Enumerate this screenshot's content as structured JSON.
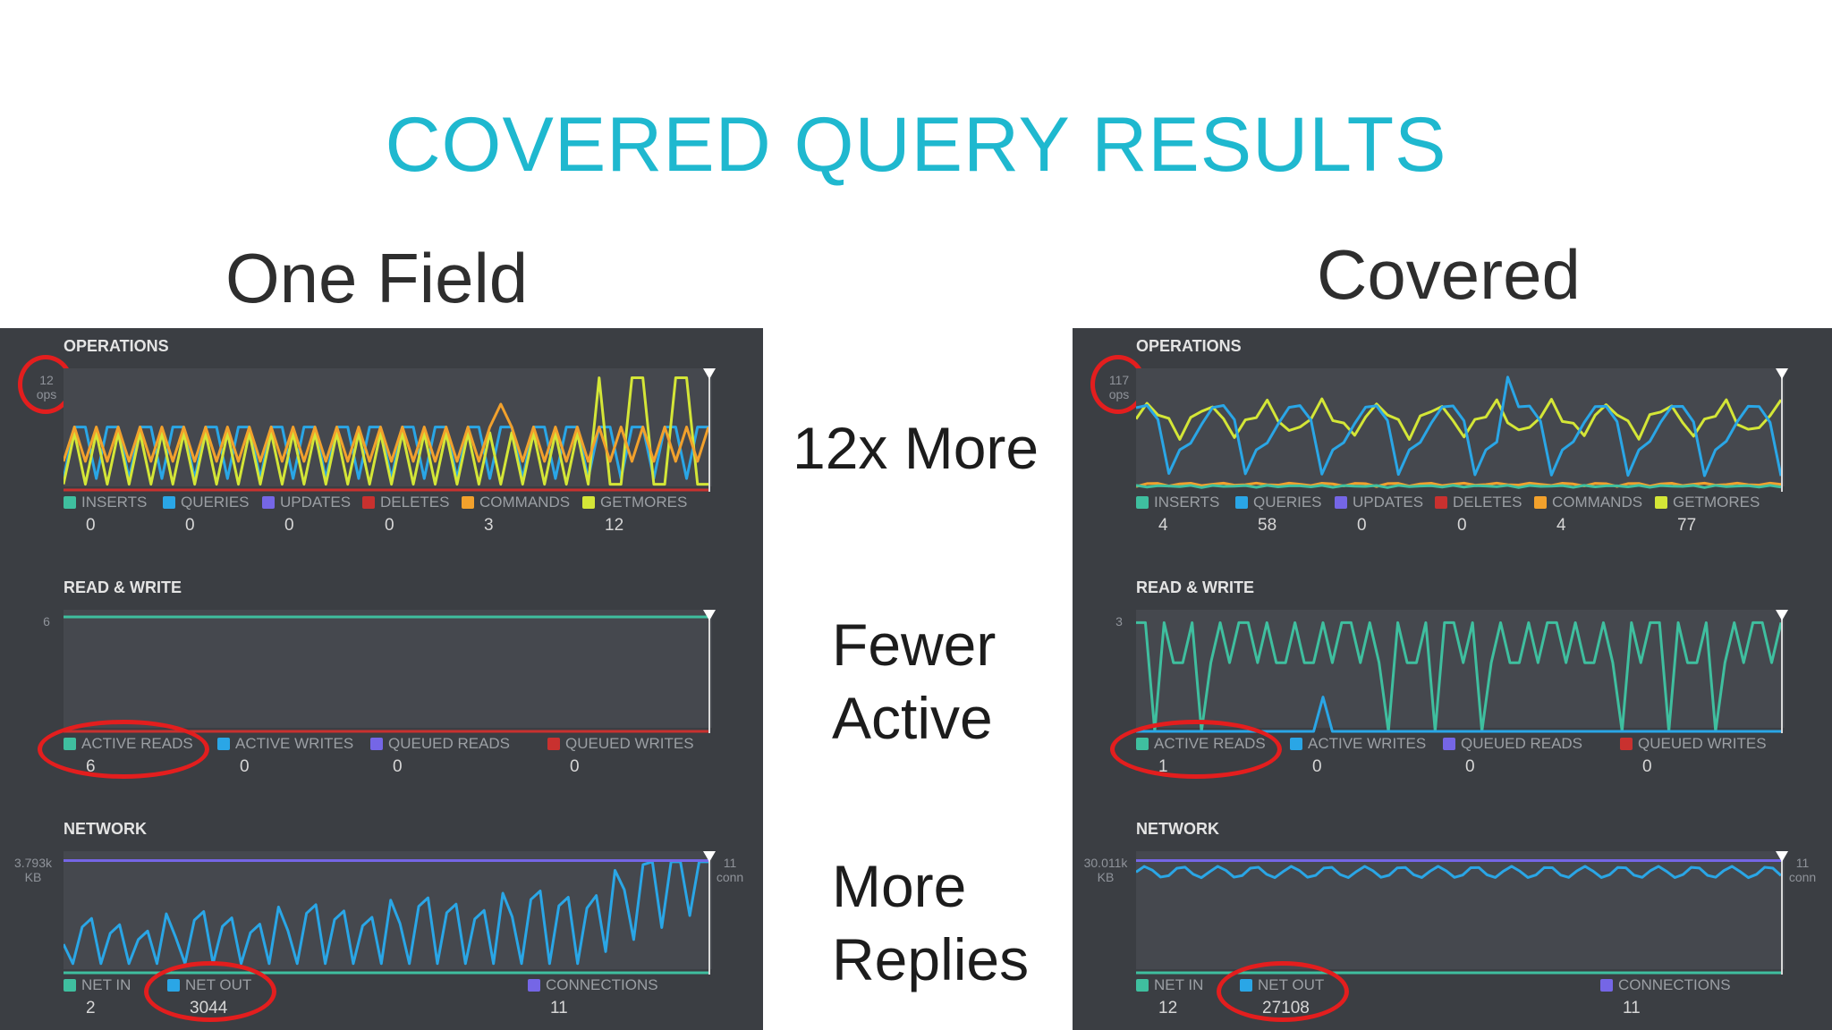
{
  "slide": {
    "title": "COVERED QUERY RESULTS",
    "left_title": "One Field",
    "right_title": "Covered",
    "notes": [
      {
        "lines": [
          "12x More"
        ]
      },
      {
        "lines": [
          "Fewer",
          "Active"
        ]
      },
      {
        "lines": [
          "More",
          "Replies"
        ]
      }
    ]
  },
  "colors": {
    "inserts": "#3fbf9f",
    "queries": "#2aa6e6",
    "updates": "#7566e6",
    "deletes": "#c9312f",
    "commands": "#f2a12c",
    "getmores": "#d4e637",
    "active_reads": "#3fbf9f",
    "active_writes": "#2aa6e6",
    "queued_reads": "#7566e6",
    "queued_writes": "#c9312f",
    "net_in": "#3fbf9f",
    "net_out": "#2aa6e6",
    "connections": "#7566e6"
  },
  "panels": [
    {
      "id": "one-field",
      "operations": {
        "title": "OPERATIONS",
        "scale": [
          "12",
          "ops"
        ],
        "legend": [
          {
            "key": "inserts",
            "label": "INSERTS",
            "value": "0"
          },
          {
            "key": "queries",
            "label": "QUERIES",
            "value": "0"
          },
          {
            "key": "updates",
            "label": "UPDATES",
            "value": "0"
          },
          {
            "key": "deletes",
            "label": "DELETES",
            "value": "0"
          },
          {
            "key": "commands",
            "label": "COMMANDS",
            "value": "3"
          },
          {
            "key": "getmores",
            "label": "GETMORES",
            "value": "12"
          }
        ]
      },
      "read_write": {
        "title": "READ & WRITE",
        "scale": "6",
        "legend": [
          {
            "key": "active_reads",
            "label": "ACTIVE READS",
            "value": "6"
          },
          {
            "key": "active_writes",
            "label": "ACTIVE WRITES",
            "value": "0"
          },
          {
            "key": "queued_reads",
            "label": "QUEUED READS",
            "value": "0"
          },
          {
            "key": "queued_writes",
            "label": "QUEUED WRITES",
            "value": "0"
          }
        ]
      },
      "network": {
        "title": "NETWORK",
        "scale_left": [
          "3.793k",
          "KB"
        ],
        "scale_right": [
          "11",
          "conn"
        ],
        "legend": [
          {
            "key": "net_in",
            "label": "NET IN",
            "value": "2"
          },
          {
            "key": "net_out",
            "label": "NET OUT",
            "value": "3044"
          },
          {
            "key": "connections",
            "label": "CONNECTIONS",
            "value": "11"
          }
        ]
      }
    },
    {
      "id": "covered",
      "operations": {
        "title": "OPERATIONS",
        "scale": [
          "117",
          "ops"
        ],
        "legend": [
          {
            "key": "inserts",
            "label": "INSERTS",
            "value": "4"
          },
          {
            "key": "queries",
            "label": "QUERIES",
            "value": "58"
          },
          {
            "key": "updates",
            "label": "UPDATES",
            "value": "0"
          },
          {
            "key": "deletes",
            "label": "DELETES",
            "value": "0"
          },
          {
            "key": "commands",
            "label": "COMMANDS",
            "value": "4"
          },
          {
            "key": "getmores",
            "label": "GETMORES",
            "value": "77"
          }
        ]
      },
      "read_write": {
        "title": "READ & WRITE",
        "scale": "3",
        "legend": [
          {
            "key": "active_reads",
            "label": "ACTIVE READS",
            "value": "1"
          },
          {
            "key": "active_writes",
            "label": "ACTIVE WRITES",
            "value": "0"
          },
          {
            "key": "queued_reads",
            "label": "QUEUED READS",
            "value": "0"
          },
          {
            "key": "queued_writes",
            "label": "QUEUED WRITES",
            "value": "0"
          }
        ]
      },
      "network": {
        "title": "NETWORK",
        "scale_left": [
          "30.011k",
          "KB"
        ],
        "scale_right": [
          "11",
          "conn"
        ],
        "legend": [
          {
            "key": "net_in",
            "label": "NET IN",
            "value": "12"
          },
          {
            "key": "net_out",
            "label": "NET OUT",
            "value": "27108"
          },
          {
            "key": "connections",
            "label": "CONNECTIONS",
            "value": "11"
          }
        ]
      }
    }
  ]
}
